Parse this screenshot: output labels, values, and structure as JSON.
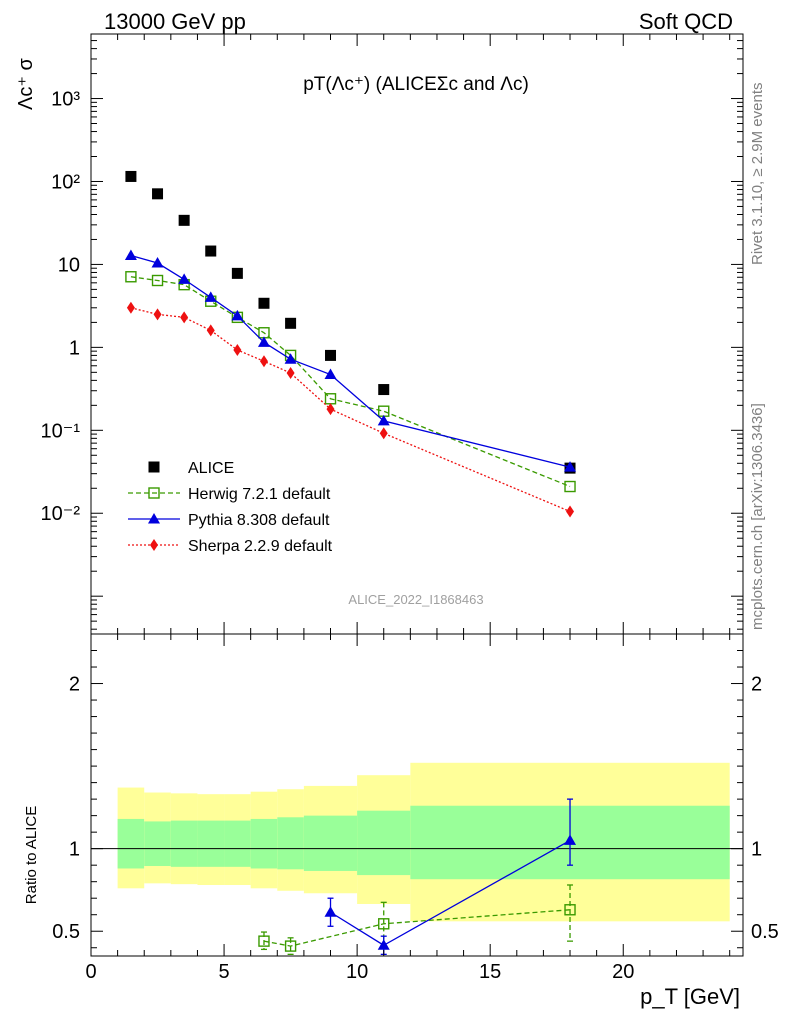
{
  "header": {
    "left": "13000 GeV pp",
    "right": "Soft QCD"
  },
  "side_labels": {
    "rivet": "Rivet 3.1.10, ≥ 2.9M events",
    "mcplots": "mcplots.cern.ch [arXiv:1306.3436]"
  },
  "chart_data": [
    {
      "type": "scatter",
      "title": "pT(Λc⁺) (ALICEΣc and Λc)",
      "ylabel": "Λc⁺ σ",
      "watermark": "ALICE_2022_I1868463",
      "yscale": "log",
      "xlim": [
        0,
        24.5
      ],
      "ylim": [
        0.00035,
        6000
      ],
      "y_tick_labels": [
        "10⁻²",
        "10⁻¹",
        "1",
        "10",
        "10²",
        "10³"
      ],
      "series": [
        {
          "name": "ALICE",
          "color": "#000000",
          "marker": "square-filled",
          "line": "none",
          "x": [
            1.5,
            2.5,
            3.5,
            4.5,
            5.5,
            6.5,
            7.5,
            9,
            11,
            18
          ],
          "y": [
            115,
            71,
            34,
            14.5,
            7.8,
            3.4,
            1.95,
            0.8,
            0.31,
            0.035
          ]
        },
        {
          "name": "Herwig 7.2.1 default",
          "color": "#3a9a00",
          "marker": "square-open",
          "line": "dashed",
          "x": [
            1.5,
            2.5,
            3.5,
            4.5,
            5.5,
            6.5,
            7.5,
            9,
            11,
            18
          ],
          "y": [
            7.1,
            6.4,
            5.7,
            3.6,
            2.3,
            1.5,
            0.8,
            0.24,
            0.17,
            0.021
          ]
        },
        {
          "name": "Pythia 8.308 default",
          "color": "#0000dd",
          "marker": "triangle",
          "line": "solid",
          "x": [
            1.5,
            2.5,
            3.5,
            4.5,
            5.5,
            6.5,
            7.5,
            9,
            11,
            18
          ],
          "y": [
            12.8,
            10.4,
            6.6,
            4.0,
            2.4,
            1.15,
            0.72,
            0.47,
            0.13,
            0.036
          ]
        },
        {
          "name": "Sherpa 2.2.9 default",
          "color": "#ee1111",
          "marker": "diamond",
          "line": "dotted",
          "x": [
            1.5,
            2.5,
            3.5,
            4.5,
            5.5,
            6.5,
            7.5,
            9,
            11,
            18
          ],
          "y": [
            3.0,
            2.5,
            2.3,
            1.6,
            0.93,
            0.68,
            0.49,
            0.18,
            0.092,
            0.0105
          ]
        }
      ]
    },
    {
      "type": "scatter",
      "xlabel": "p_T [GeV]",
      "ylabel": "Ratio to ALICE",
      "xlim": [
        0,
        24.5
      ],
      "ylim": [
        0.35,
        2.3
      ],
      "x_tick_labels": [
        "0",
        "5",
        "10",
        "15",
        "20"
      ],
      "y_tick_labels": [
        "0.5",
        "1",
        "2"
      ],
      "reference_line": 1,
      "uncertainty_bands": {
        "edges": [
          1,
          2,
          3,
          4,
          5,
          6,
          7,
          8,
          10,
          12,
          24
        ],
        "yellow_low": [
          0.76,
          0.79,
          0.785,
          0.78,
          0.78,
          0.76,
          0.745,
          0.73,
          0.665,
          0.56
        ],
        "yellow_high": [
          1.37,
          1.34,
          1.335,
          1.33,
          1.33,
          1.345,
          1.36,
          1.38,
          1.445,
          1.52
        ],
        "green_low": [
          0.88,
          0.895,
          0.89,
          0.89,
          0.89,
          0.88,
          0.875,
          0.865,
          0.84,
          0.815
        ],
        "green_high": [
          1.18,
          1.165,
          1.17,
          1.17,
          1.17,
          1.18,
          1.19,
          1.2,
          1.23,
          1.26
        ],
        "yellow_color": "#ffff99",
        "green_color": "#99ff99"
      },
      "series": [
        {
          "name": "Herwig 7.2.1 default",
          "color": "#3a9a00",
          "marker": "square-open",
          "line": "dashed",
          "x": [
            6.5,
            7.5,
            11,
            18
          ],
          "y": [
            0.44,
            0.41,
            0.545,
            0.63
          ],
          "err_low": [
            0.39,
            0.36,
            0.41,
            0.44
          ],
          "err_high": [
            0.495,
            0.46,
            0.675,
            0.78
          ]
        },
        {
          "name": "Pythia 8.308 default",
          "color": "#0000dd",
          "marker": "triangle",
          "line": "solid",
          "x": [
            9,
            11,
            18
          ],
          "y": [
            0.615,
            0.415,
            1.05
          ],
          "err_low": [
            0.53,
            0.36,
            0.9
          ],
          "err_high": [
            0.7,
            0.47,
            1.3
          ]
        }
      ]
    }
  ]
}
